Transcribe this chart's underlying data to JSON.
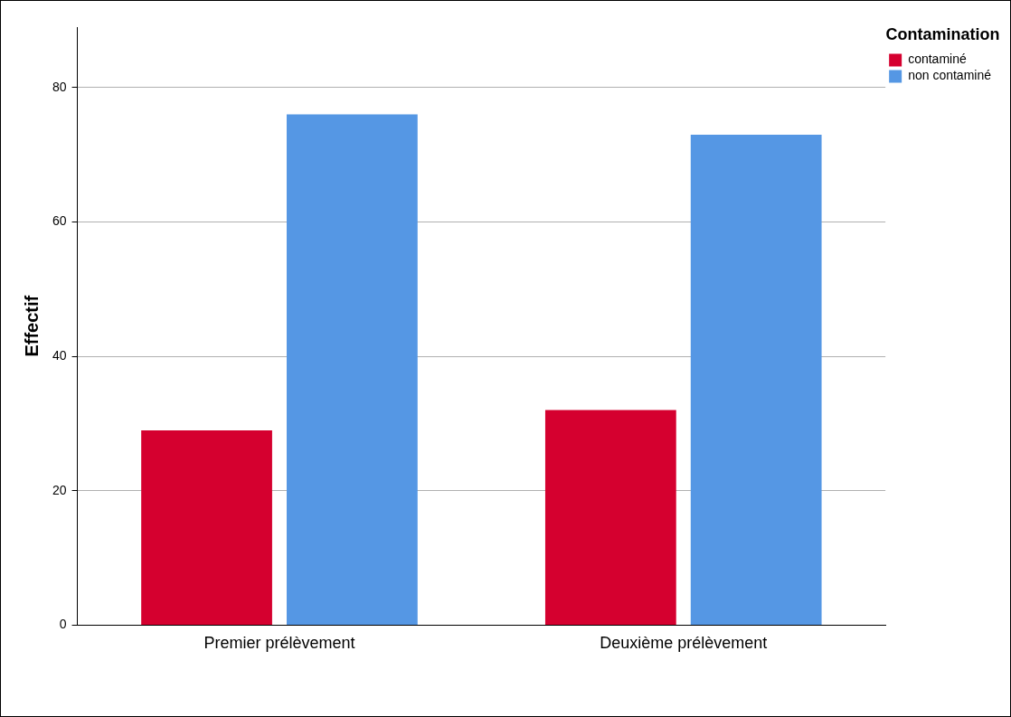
{
  "chart_data": {
    "type": "bar",
    "ylabel": "Effectif",
    "legend_title": "Contamination",
    "categories": [
      "Premier prélèvement",
      "Deuxième prélèvement"
    ],
    "series": [
      {
        "name": "contaminé",
        "color": "#d5002f",
        "values": [
          29,
          32
        ]
      },
      {
        "name": "non contaminé",
        "color": "#5597e4",
        "values": [
          76,
          73
        ]
      }
    ],
    "ylim": [
      0,
      89
    ],
    "yticks": [
      0,
      20,
      40,
      60,
      80
    ],
    "grid": "y",
    "legend": "top right"
  }
}
